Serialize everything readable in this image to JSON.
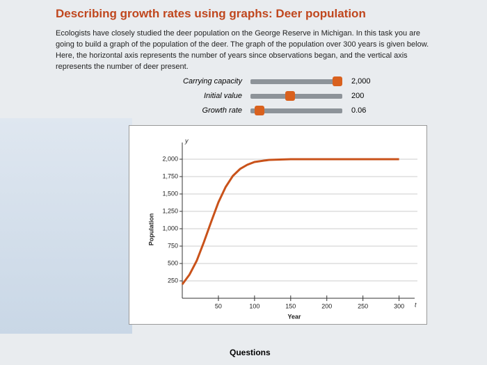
{
  "header": {
    "title": "Describing growth rates using graphs: Deer population"
  },
  "intro": "Ecologists have closely studied the deer population on the George Reserve in Michigan. In this task you are going to build a graph of the population of the deer. The graph of the population over 300 years is given below. Here, the horizontal axis represents the number of years since observations began, and the vertical axis represents the number of deer present.",
  "sliders": [
    {
      "label": "Carrying capacity",
      "value": "2,000"
    },
    {
      "label": "Initial value",
      "value": "200"
    },
    {
      "label": "Growth rate",
      "value": "0.06"
    }
  ],
  "chart_data": {
    "type": "line",
    "x_axis_letter": "t",
    "y_axis_letter": "y",
    "xlabel": "Year",
    "ylabel": "Population",
    "x": [
      0,
      10,
      20,
      30,
      40,
      50,
      60,
      70,
      80,
      90,
      100,
      120,
      150,
      200,
      250,
      300
    ],
    "series": [
      {
        "color": "#c9521a",
        "values": [
          200,
          340,
          540,
          810,
          1100,
          1380,
          1600,
          1760,
          1860,
          1920,
          1960,
          1990,
          2000,
          2000,
          2000,
          2000
        ]
      }
    ],
    "xlim": [
      0,
      310
    ],
    "xticks": [
      50,
      100,
      150,
      200,
      250,
      300
    ],
    "ylim": [
      0,
      2200
    ],
    "yticks": [
      250,
      500,
      750,
      {
        "value": 1000,
        "label": "1,000"
      },
      {
        "value": 1250,
        "label": "1,250"
      },
      {
        "value": 1500,
        "label": "1,500"
      },
      {
        "value": 1750,
        "label": "1,750"
      },
      {
        "value": 2000,
        "label": "2,000"
      }
    ],
    "grid": true
  },
  "footer": {
    "link": "Questions"
  }
}
